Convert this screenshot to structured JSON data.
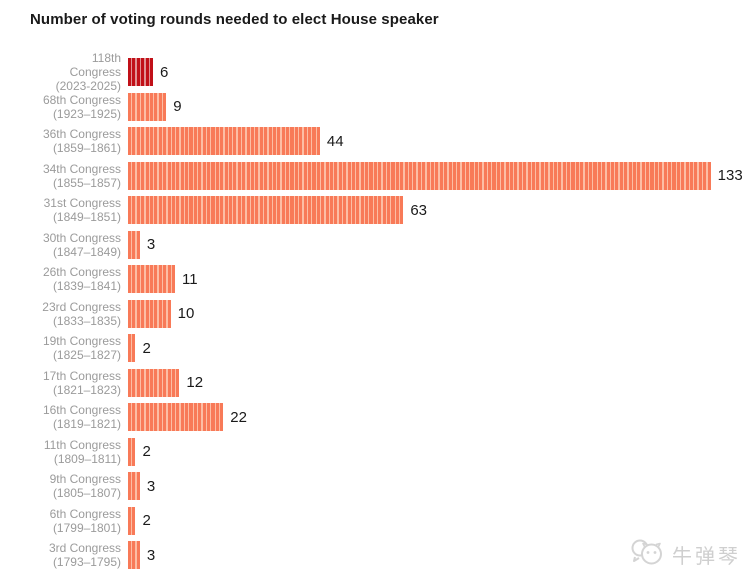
{
  "title": "Number of voting rounds needed to elect House speaker",
  "colors": {
    "title_text": "#1a1a1a",
    "label_text": "#9b9b9b",
    "value_text": "#1a1a1a",
    "bar_main": "#f87a58",
    "bar_gap": "#fcbea5",
    "highlight_main": "#c11018",
    "highlight_gap": "#e09294",
    "watermark": "#cfcfcf",
    "background": "#ffffff"
  },
  "watermark": {
    "icon": "chat-bubbles-logo-icon",
    "text": "牛弹琴"
  },
  "chart_data": {
    "type": "bar",
    "orientation": "horizontal",
    "style": "unit-stripes (one stripe per voting round)",
    "title": "Number of voting rounds needed to elect House speaker",
    "xlabel": "",
    "ylabel": "",
    "axes_shown": false,
    "grid": false,
    "legend": "none",
    "value_labels": "right of bar",
    "xlim": [
      0,
      140
    ],
    "highlight_index": 0,
    "categories": [
      "118th Congress (2023-2025)",
      "68th Congress (1923–1925)",
      "36th Congress (1859–1861)",
      "34th Congress (1855–1857)",
      "31st Congress (1849–1851)",
      "30th Congress (1847–1849)",
      "26th Congress (1839–1841)",
      "23rd Congress (1833–1835)",
      "19th Congress (1825–1827)",
      "17th Congress (1821–1823)",
      "16th Congress (1819–1821)",
      "11th Congress (1809–1811)",
      "9th Congress (1805–1807)",
      "6th Congress (1799–1801)",
      "3rd Congress (1793–1795)"
    ],
    "values": [
      6,
      9,
      44,
      133,
      63,
      3,
      11,
      10,
      2,
      12,
      22,
      2,
      3,
      2,
      3
    ],
    "rows": [
      {
        "label_lines": [
          "118th",
          "Congress",
          "(2023-2025)"
        ],
        "value": 6,
        "highlight": true
      },
      {
        "label_lines": [
          "68th Congress",
          "(1923–1925)"
        ],
        "value": 9,
        "highlight": false
      },
      {
        "label_lines": [
          "36th Congress",
          "(1859–1861)"
        ],
        "value": 44,
        "highlight": false
      },
      {
        "label_lines": [
          "34th Congress",
          "(1855–1857)"
        ],
        "value": 133,
        "highlight": false
      },
      {
        "label_lines": [
          "31st Congress",
          "(1849–1851)"
        ],
        "value": 63,
        "highlight": false
      },
      {
        "label_lines": [
          "30th Congress",
          "(1847–1849)"
        ],
        "value": 3,
        "highlight": false
      },
      {
        "label_lines": [
          "26th Congress",
          "(1839–1841)"
        ],
        "value": 11,
        "highlight": false
      },
      {
        "label_lines": [
          "23rd Congress",
          "(1833–1835)"
        ],
        "value": 10,
        "highlight": false
      },
      {
        "label_lines": [
          "19th Congress",
          "(1825–1827)"
        ],
        "value": 2,
        "highlight": false
      },
      {
        "label_lines": [
          "17th Congress",
          "(1821–1823)"
        ],
        "value": 12,
        "highlight": false
      },
      {
        "label_lines": [
          "16th Congress",
          "(1819–1821)"
        ],
        "value": 22,
        "highlight": false
      },
      {
        "label_lines": [
          "11th Congress",
          "(1809–1811)"
        ],
        "value": 2,
        "highlight": false
      },
      {
        "label_lines": [
          "9th Congress",
          "(1805–1807)"
        ],
        "value": 3,
        "highlight": false
      },
      {
        "label_lines": [
          "6th Congress",
          "(1799–1801)"
        ],
        "value": 2,
        "highlight": false
      },
      {
        "label_lines": [
          "3rd Congress",
          "(1793–1795)"
        ],
        "value": 3,
        "highlight": false
      }
    ]
  }
}
